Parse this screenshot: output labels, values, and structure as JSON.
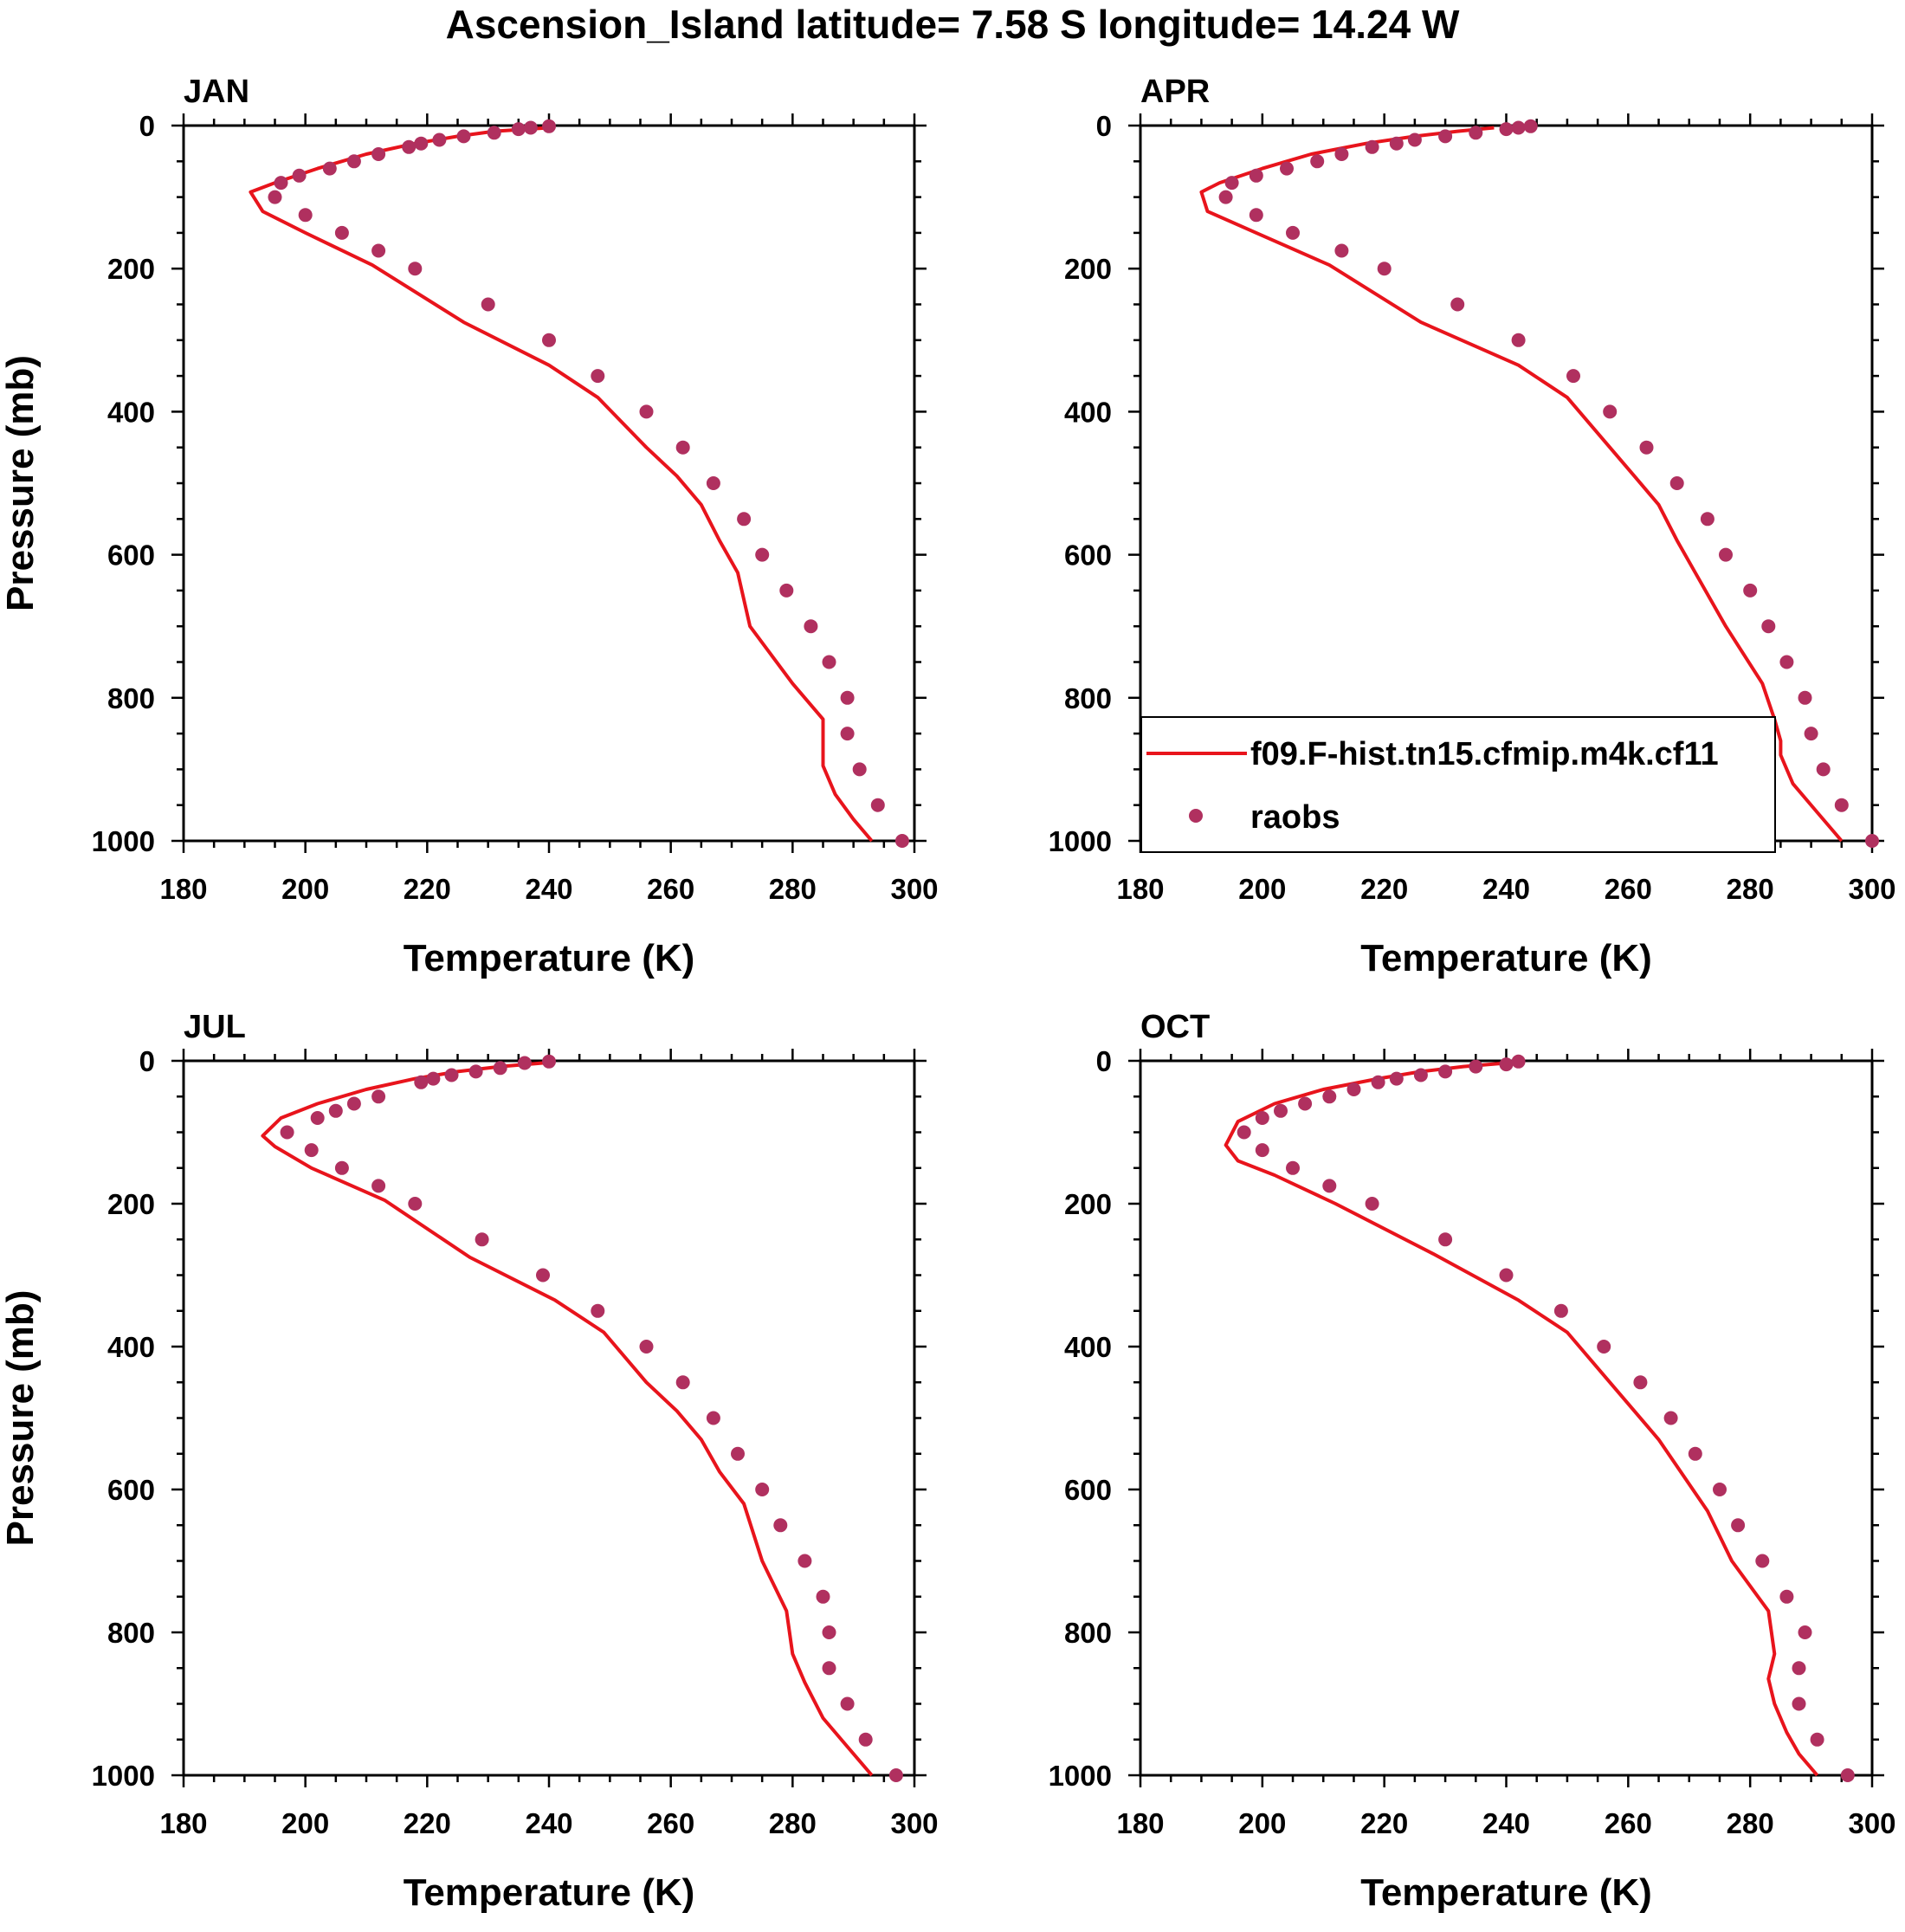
{
  "figure": {
    "title": "Ascension_Island  latitude= 7.58 S longitude= 14.24 W"
  },
  "colors": {
    "model": "#e8141c",
    "obs": "#b0305f",
    "axis": "#000000"
  },
  "legend": {
    "model_label": "f09.F-hist.tn15.cfmip.m4k.cf11",
    "obs_label": "raobs"
  },
  "chart_data": [
    {
      "type": "line",
      "panel": "JAN",
      "title": "JAN",
      "xlabel": "Temperature (K)",
      "ylabel": "Pressure (mb)",
      "xlim": [
        180,
        300
      ],
      "ylim": [
        1000,
        0
      ],
      "xticks": [
        180,
        200,
        220,
        240,
        260,
        280,
        300
      ],
      "yticks": [
        0,
        200,
        400,
        600,
        800,
        1000
      ],
      "series": [
        {
          "name": "f09.F-hist.tn15.cfmip.m4k.cf11",
          "kind": "line",
          "points": [
            [
              240,
              3
            ],
            [
              231,
              8
            ],
            [
              225,
              15
            ],
            [
              218,
              25
            ],
            [
              210,
              40
            ],
            [
              202,
              60
            ],
            [
              195,
              80
            ],
            [
              191,
              93
            ],
            [
              193,
              120
            ],
            [
              200,
              150
            ],
            [
              211,
              195
            ],
            [
              226,
              275
            ],
            [
              240,
              335
            ],
            [
              248,
              380
            ],
            [
              256,
              450
            ],
            [
              261,
              490
            ],
            [
              265,
              530
            ],
            [
              268,
              580
            ],
            [
              271,
              625
            ],
            [
              273,
              700
            ],
            [
              280,
              780
            ],
            [
              285,
              830
            ],
            [
              285,
              860
            ],
            [
              285,
              895
            ],
            [
              287,
              935
            ],
            [
              290,
              970
            ],
            [
              293,
              1000
            ]
          ]
        },
        {
          "name": "raobs",
          "kind": "scatter",
          "points": [
            [
              240,
              1
            ],
            [
              237,
              3
            ],
            [
              235,
              5
            ],
            [
              231,
              10
            ],
            [
              226,
              15
            ],
            [
              222,
              20
            ],
            [
              219,
              25
            ],
            [
              217,
              30
            ],
            [
              212,
              40
            ],
            [
              208,
              50
            ],
            [
              204,
              60
            ],
            [
              199,
              70
            ],
            [
              196,
              80
            ],
            [
              195,
              100
            ],
            [
              200,
              125
            ],
            [
              206,
              150
            ],
            [
              212,
              175
            ],
            [
              218,
              200
            ],
            [
              230,
              250
            ],
            [
              240,
              300
            ],
            [
              248,
              350
            ],
            [
              256,
              400
            ],
            [
              262,
              450
            ],
            [
              267,
              500
            ],
            [
              272,
              550
            ],
            [
              275,
              600
            ],
            [
              279,
              650
            ],
            [
              283,
              700
            ],
            [
              286,
              750
            ],
            [
              289,
              800
            ],
            [
              289,
              850
            ],
            [
              291,
              900
            ],
            [
              294,
              950
            ],
            [
              298,
              1000
            ]
          ]
        }
      ]
    },
    {
      "type": "line",
      "panel": "APR",
      "title": "APR",
      "xlabel": "Temperature (K)",
      "ylabel": "",
      "xlim": [
        180,
        300
      ],
      "ylim": [
        1000,
        0
      ],
      "xticks": [
        180,
        200,
        220,
        240,
        260,
        280,
        300
      ],
      "yticks": [
        0,
        200,
        400,
        600,
        800,
        1000
      ],
      "series": [
        {
          "name": "f09.F-hist.tn15.cfmip.m4k.cf11",
          "kind": "line",
          "points": [
            [
              238,
              3
            ],
            [
              232,
              8
            ],
            [
              225,
              15
            ],
            [
              217,
              25
            ],
            [
              208,
              40
            ],
            [
              200,
              60
            ],
            [
              193,
              80
            ],
            [
              190,
              93
            ],
            [
              191,
              120
            ],
            [
              199,
              150
            ],
            [
              211,
              195
            ],
            [
              226,
              275
            ],
            [
              242,
              335
            ],
            [
              250,
              380
            ],
            [
              257,
              450
            ],
            [
              261,
              490
            ],
            [
              265,
              530
            ],
            [
              268,
              580
            ],
            [
              271,
              625
            ],
            [
              276,
              700
            ],
            [
              282,
              780
            ],
            [
              284,
              830
            ],
            [
              285,
              860
            ],
            [
              285,
              880
            ],
            [
              287,
              920
            ],
            [
              291,
              960
            ],
            [
              295,
              1000
            ]
          ]
        },
        {
          "name": "raobs",
          "kind": "scatter",
          "points": [
            [
              244,
              1
            ],
            [
              242,
              3
            ],
            [
              240,
              5
            ],
            [
              235,
              10
            ],
            [
              230,
              15
            ],
            [
              225,
              20
            ],
            [
              222,
              25
            ],
            [
              218,
              30
            ],
            [
              213,
              40
            ],
            [
              209,
              50
            ],
            [
              204,
              60
            ],
            [
              199,
              70
            ],
            [
              195,
              80
            ],
            [
              194,
              100
            ],
            [
              199,
              125
            ],
            [
              205,
              150
            ],
            [
              213,
              175
            ],
            [
              220,
              200
            ],
            [
              232,
              250
            ],
            [
              242,
              300
            ],
            [
              251,
              350
            ],
            [
              257,
              400
            ],
            [
              263,
              450
            ],
            [
              268,
              500
            ],
            [
              273,
              550
            ],
            [
              276,
              600
            ],
            [
              280,
              650
            ],
            [
              283,
              700
            ],
            [
              286,
              750
            ],
            [
              289,
              800
            ],
            [
              290,
              850
            ],
            [
              292,
              900
            ],
            [
              295,
              950
            ],
            [
              300,
              1000
            ]
          ]
        }
      ]
    },
    {
      "type": "line",
      "panel": "JUL",
      "title": "JUL",
      "xlabel": "Temperature (K)",
      "ylabel": "Pressure (mb)",
      "xlim": [
        180,
        300
      ],
      "ylim": [
        1000,
        0
      ],
      "xticks": [
        180,
        200,
        220,
        240,
        260,
        280,
        300
      ],
      "yticks": [
        0,
        200,
        400,
        600,
        800,
        1000
      ],
      "series": [
        {
          "name": "f09.F-hist.tn15.cfmip.m4k.cf11",
          "kind": "line",
          "points": [
            [
              239,
              3
            ],
            [
              232,
              8
            ],
            [
              225,
              15
            ],
            [
              218,
              25
            ],
            [
              210,
              40
            ],
            [
              202,
              60
            ],
            [
              196,
              80
            ],
            [
              193,
              105
            ],
            [
              195,
              120
            ],
            [
              201,
              150
            ],
            [
              213,
              195
            ],
            [
              227,
              275
            ],
            [
              241,
              335
            ],
            [
              249,
              380
            ],
            [
              256,
              450
            ],
            [
              261,
              490
            ],
            [
              265,
              530
            ],
            [
              268,
              575
            ],
            [
              272,
              620
            ],
            [
              275,
              700
            ],
            [
              279,
              770
            ],
            [
              280,
              830
            ],
            [
              282,
              870
            ],
            [
              285,
              920
            ],
            [
              289,
              960
            ],
            [
              293,
              1000
            ]
          ]
        },
        {
          "name": "raobs",
          "kind": "scatter",
          "points": [
            [
              240,
              1
            ],
            [
              236,
              3
            ],
            [
              232,
              10
            ],
            [
              228,
              15
            ],
            [
              224,
              20
            ],
            [
              221,
              25
            ],
            [
              219,
              30
            ],
            [
              212,
              50
            ],
            [
              208,
              60
            ],
            [
              205,
              70
            ],
            [
              202,
              80
            ],
            [
              197,
              100
            ],
            [
              201,
              125
            ],
            [
              206,
              150
            ],
            [
              212,
              175
            ],
            [
              218,
              200
            ],
            [
              229,
              250
            ],
            [
              239,
              300
            ],
            [
              248,
              350
            ],
            [
              256,
              400
            ],
            [
              262,
              450
            ],
            [
              267,
              500
            ],
            [
              271,
              550
            ],
            [
              275,
              600
            ],
            [
              278,
              650
            ],
            [
              282,
              700
            ],
            [
              285,
              750
            ],
            [
              286,
              800
            ],
            [
              286,
              850
            ],
            [
              289,
              900
            ],
            [
              292,
              950
            ],
            [
              297,
              1000
            ]
          ]
        }
      ]
    },
    {
      "type": "line",
      "panel": "OCT",
      "title": "OCT",
      "xlabel": "Temperature (K)",
      "ylabel": "",
      "xlim": [
        180,
        300
      ],
      "ylim": [
        1000,
        0
      ],
      "xticks": [
        180,
        200,
        220,
        240,
        260,
        280,
        300
      ],
      "yticks": [
        0,
        200,
        400,
        600,
        800,
        1000
      ],
      "series": [
        {
          "name": "f09.F-hist.tn15.cfmip.m4k.cf11",
          "kind": "line",
          "points": [
            [
              240,
              3
            ],
            [
              233,
              8
            ],
            [
              226,
              15
            ],
            [
              219,
              25
            ],
            [
              210,
              40
            ],
            [
              202,
              60
            ],
            [
              196,
              85
            ],
            [
              194,
              118
            ],
            [
              196,
              140
            ],
            [
              202,
              160
            ],
            [
              212,
              200
            ],
            [
              228,
              270
            ],
            [
              242,
              335
            ],
            [
              250,
              380
            ],
            [
              257,
              450
            ],
            [
              261,
              490
            ],
            [
              265,
              530
            ],
            [
              269,
              580
            ],
            [
              273,
              630
            ],
            [
              277,
              700
            ],
            [
              283,
              770
            ],
            [
              284,
              830
            ],
            [
              283,
              865
            ],
            [
              284,
              900
            ],
            [
              286,
              940
            ],
            [
              288,
              970
            ],
            [
              291,
              1000
            ]
          ]
        },
        {
          "name": "raobs",
          "kind": "scatter",
          "points": [
            [
              242,
              1
            ],
            [
              240,
              5
            ],
            [
              235,
              8
            ],
            [
              230,
              15
            ],
            [
              226,
              20
            ],
            [
              222,
              25
            ],
            [
              219,
              30
            ],
            [
              215,
              40
            ],
            [
              211,
              50
            ],
            [
              207,
              60
            ],
            [
              203,
              70
            ],
            [
              200,
              80
            ],
            [
              197,
              100
            ],
            [
              200,
              125
            ],
            [
              205,
              150
            ],
            [
              211,
              175
            ],
            [
              218,
              200
            ],
            [
              230,
              250
            ],
            [
              240,
              300
            ],
            [
              249,
              350
            ],
            [
              256,
              400
            ],
            [
              262,
              450
            ],
            [
              267,
              500
            ],
            [
              271,
              550
            ],
            [
              275,
              600
            ],
            [
              278,
              650
            ],
            [
              282,
              700
            ],
            [
              286,
              750
            ],
            [
              289,
              800
            ],
            [
              288,
              850
            ],
            [
              288,
              900
            ],
            [
              291,
              950
            ],
            [
              296,
              1000
            ]
          ]
        }
      ]
    }
  ]
}
